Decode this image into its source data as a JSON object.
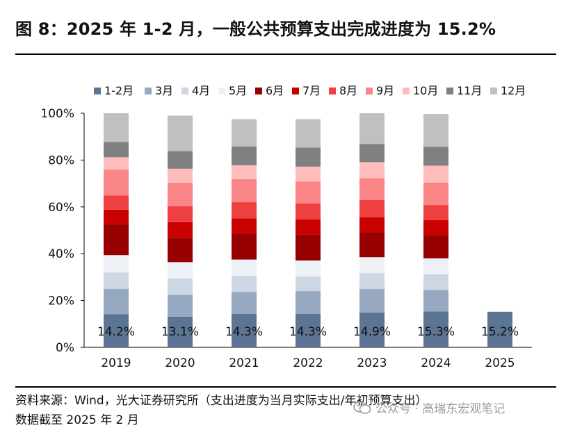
{
  "title": "图 8：2025 年 1-2 月，一般公共预算支出完成进度为 15.2%",
  "source": "资料来源：Wind，光大证券研究所（支出进度为当月实际支出/年初预算支出）",
  "note": "数据截至 2025 年 2 月",
  "watermark": {
    "text": "公众号 · 高瑞东宏观笔记",
    "icon": "wechat-icon"
  },
  "chart_data": {
    "type": "bar",
    "stacked": true,
    "categories": [
      "2019",
      "2020",
      "2021",
      "2022",
      "2023",
      "2024",
      "2025"
    ],
    "y_ticks": [
      "0%",
      "20%",
      "40%",
      "60%",
      "80%",
      "100%"
    ],
    "ylim": [
      0,
      100
    ],
    "unit": "%",
    "legend_position": "top",
    "grid": false,
    "series": [
      {
        "name": "1-2月",
        "color": "#5d7594",
        "values": [
          14.2,
          13.1,
          14.3,
          14.3,
          14.9,
          15.3,
          15.2
        ]
      },
      {
        "name": "3月",
        "color": "#96a9c1",
        "values": [
          10.8,
          9.4,
          9.4,
          9.7,
          10.0,
          9.2,
          null
        ]
      },
      {
        "name": "4月",
        "color": "#cdd7e3",
        "values": [
          7.0,
          7.0,
          6.9,
          6.3,
          6.8,
          6.7,
          null
        ]
      },
      {
        "name": "5月",
        "color": "#edf1f6",
        "values": [
          7.4,
          6.9,
          6.9,
          6.8,
          6.8,
          6.8,
          null
        ]
      },
      {
        "name": "6月",
        "color": "#960000",
        "values": [
          13.1,
          10.4,
          11.0,
          11.0,
          10.6,
          9.9,
          null
        ]
      },
      {
        "name": "7月",
        "color": "#c80000",
        "values": [
          6.3,
          6.7,
          6.6,
          6.5,
          6.4,
          6.5,
          null
        ]
      },
      {
        "name": "8月",
        "color": "#ee4040",
        "values": [
          6.1,
          6.8,
          6.9,
          6.9,
          7.4,
          6.4,
          null
        ]
      },
      {
        "name": "9月",
        "color": "#f98586",
        "values": [
          11.0,
          10.0,
          9.8,
          9.3,
          9.4,
          9.6,
          null
        ]
      },
      {
        "name": "10月",
        "color": "#fdbdbd",
        "values": [
          5.3,
          6.0,
          6.0,
          6.4,
          6.8,
          7.2,
          null
        ]
      },
      {
        "name": "11月",
        "color": "#808080",
        "values": [
          6.5,
          7.5,
          8.0,
          8.1,
          7.8,
          8.1,
          null
        ]
      },
      {
        "name": "12月",
        "color": "#c0c0c0",
        "values": [
          12.3,
          15.2,
          11.7,
          12.2,
          13.1,
          14.0,
          null
        ]
      }
    ],
    "data_labels": [
      "14.2%",
      "13.1%",
      "14.3%",
      "14.3%",
      "14.9%",
      "15.3%",
      "15.2%"
    ]
  }
}
